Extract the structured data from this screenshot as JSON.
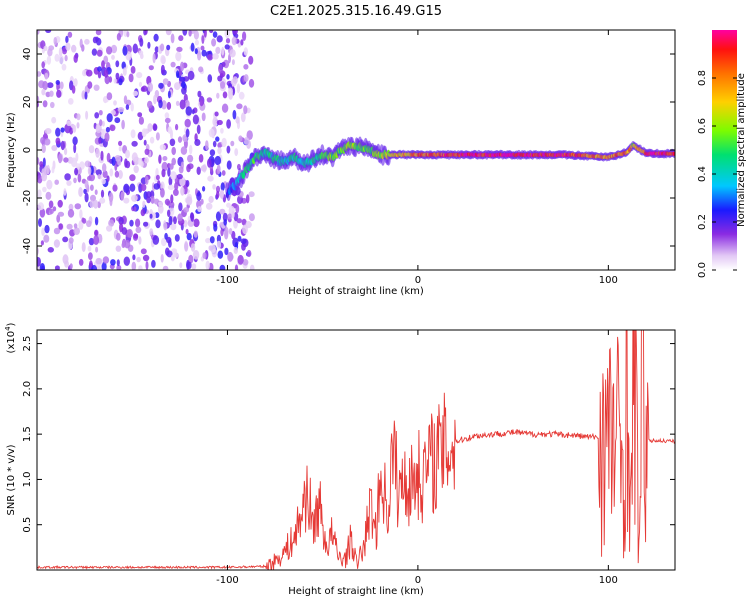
{
  "chart_data": [
    {
      "type": "heatmap",
      "title": "C2E1.2025.315.16.49.G15",
      "xlabel": "Height of straight line (km)",
      "ylabel": "Frequency (Hz)",
      "xlim": [
        -200,
        135
      ],
      "ylim": [
        -50,
        50
      ],
      "xticks": [
        -100,
        0,
        100
      ],
      "xtick_labels": [
        "-100",
        "0",
        "100"
      ],
      "yticks": [
        -40,
        -20,
        0,
        20,
        40
      ],
      "ytick_labels": [
        "-40",
        "-20",
        "0",
        "20",
        "40"
      ],
      "noise_region_x": [
        -200,
        -87
      ],
      "signal_trace": {
        "x": [
          -100,
          -95,
          -90,
          -85,
          -80,
          -75,
          -70,
          -65,
          -60,
          -55,
          -50,
          -45,
          -40,
          -35,
          -30,
          -25,
          -20,
          -10,
          0,
          20,
          40,
          60,
          80,
          90,
          100,
          105,
          110,
          113,
          120,
          135
        ],
        "freq": [
          -18,
          -14,
          -8,
          -3,
          -1,
          -4,
          -5,
          -3,
          -6,
          -4,
          -2,
          -3,
          0,
          2,
          1,
          0,
          -2,
          -2,
          -2,
          -2,
          -2,
          -2,
          -2,
          -2.5,
          -3,
          -2,
          -1,
          2,
          -1.5,
          -1.5
        ],
        "amplitude": [
          0.25,
          0.35,
          0.45,
          0.5,
          0.45,
          0.45,
          0.4,
          0.45,
          0.4,
          0.45,
          0.5,
          0.55,
          0.55,
          0.6,
          0.55,
          0.5,
          0.6,
          0.7,
          0.8,
          0.9,
          0.95,
          0.95,
          0.9,
          0.8,
          0.75,
          0.8,
          0.85,
          0.6,
          0.95,
          0.95
        ]
      },
      "colorbar": {
        "label": "Normalized spectral amplitude",
        "range": [
          0,
          1
        ],
        "ticks": [
          0.0,
          0.2,
          0.4,
          0.6,
          0.8
        ],
        "tick_labels": [
          "0.0",
          "0.2",
          "0.4",
          "0.6",
          "0.8"
        ]
      }
    },
    {
      "type": "line",
      "xlabel": "Height of straight line (km)",
      "ylabel": "SNR (10 * v/v)",
      "scale_label_base": "(x10",
      "scale_label_exp": "4",
      "scale_label_end": ")",
      "xlim": [
        -200,
        135
      ],
      "ylim": [
        0,
        2.65
      ],
      "xticks": [
        -100,
        0,
        100
      ],
      "xtick_labels": [
        "-100",
        "0",
        "100"
      ],
      "yticks": [
        0.5,
        1.0,
        1.5,
        2.0,
        2.5
      ],
      "ytick_labels": [
        "0.5",
        "1.0",
        "1.5",
        "2.0",
        "2.5"
      ],
      "color": "#e53935",
      "series": [
        {
          "name": "SNR",
          "x": [
            -200,
            -150,
            -100,
            -80,
            -75,
            -70,
            -65,
            -62,
            -58,
            -55,
            -52,
            -48,
            -45,
            -42,
            -38,
            -35,
            -32,
            -28,
            -25,
            -22,
            -19,
            -16,
            -13,
            -10,
            -7,
            -4,
            -1,
            2,
            5,
            10,
            15,
            20,
            30,
            40,
            50,
            60,
            70,
            80,
            90,
            100,
            105,
            108,
            110,
            112,
            114,
            116,
            118,
            120,
            125,
            135
          ],
          "values": [
            0.03,
            0.03,
            0.03,
            0.04,
            0.1,
            0.2,
            0.35,
            0.55,
            0.9,
            0.45,
            0.75,
            0.25,
            0.4,
            0.15,
            0.12,
            0.35,
            0.05,
            0.3,
            0.7,
            0.45,
            1.1,
            0.6,
            1.35,
            0.8,
            1.05,
            0.9,
            1.1,
            1.0,
            1.15,
            1.25,
            1.35,
            1.42,
            1.48,
            1.5,
            1.52,
            1.5,
            1.5,
            1.49,
            1.47,
            1.46,
            1.43,
            1.2,
            2.0,
            0.7,
            2.5,
            0.15,
            2.6,
            1.42,
            1.43,
            1.42
          ]
        }
      ]
    }
  ]
}
